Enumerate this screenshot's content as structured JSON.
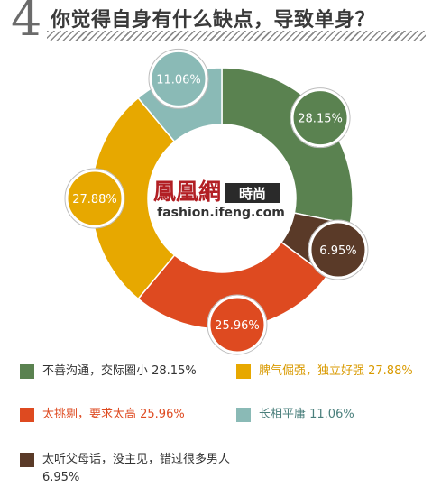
{
  "header": {
    "number": "4",
    "title": "你觉得自身有什么缺点，导致单身？"
  },
  "logo": {
    "chinese": "鳳凰網",
    "tag": "時尚",
    "url": "fashion.ifeng.com"
  },
  "chart_data": {
    "type": "pie",
    "donut": true,
    "slices": [
      {
        "label": "不善沟通，交际圈小",
        "value": 28.15,
        "display": "28.15%",
        "color": "#5a8250"
      },
      {
        "label": "太听父母话，没主见，错过很多男人",
        "value": 6.95,
        "display": "6.95%",
        "color": "#5a3a28"
      },
      {
        "label": "太挑剔，要求太高",
        "value": 25.96,
        "display": "25.96%",
        "color": "#de4a20"
      },
      {
        "label": "脾气倔强，独立好强",
        "value": 27.88,
        "display": "27.88%",
        "color": "#e7a800"
      },
      {
        "label": "长相平庸",
        "value": 11.06,
        "display": "11.06%",
        "color": "#8abab6"
      }
    ]
  },
  "legend": [
    {
      "text": "不善沟通，交际圈小 28.15%",
      "color": "#5a8250",
      "text_color": "#333333"
    },
    {
      "text": "脾气倔强，独立好强 27.88%",
      "color": "#e7a800",
      "text_color": "#d99a00"
    },
    {
      "text": "太挑剔，要求太高 25.96%",
      "color": "#de4a20",
      "text_color": "#de4a20"
    },
    {
      "text": "长相平庸 11.06%",
      "color": "#8abab6",
      "text_color": "#4a7f7c"
    },
    {
      "text": "太听父母话，没主见，错过很多男人6.95%",
      "color": "#5a3a28",
      "text_color": "#333333"
    }
  ]
}
